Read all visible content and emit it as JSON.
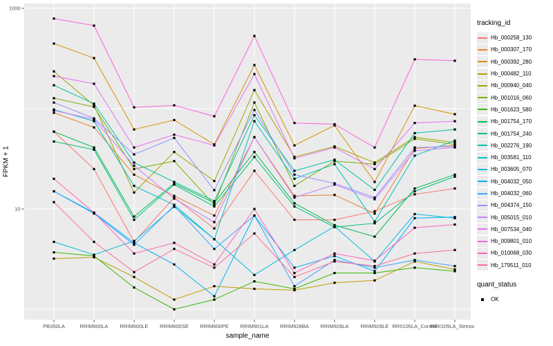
{
  "figure": {
    "panel_background": "#ebebeb",
    "gridline_color": "#ffffff",
    "tick_label_color": "#4d4d4d",
    "tick_mark_color": "#333333",
    "marker_color": "#000000"
  },
  "chart_data": {
    "type": "line",
    "title": "",
    "xlabel": "sample_name",
    "ylabel": "FPKM + 1",
    "y_scale": "log10",
    "ylim": [
      0.85,
      1150
    ],
    "y_tick_labels": [
      "1000",
      "10"
    ],
    "y_tick_values": [
      1000,
      10
    ],
    "y_gridline_values": [
      1000,
      100,
      10,
      1
    ],
    "grid": "on",
    "legend_position": "right",
    "categories": [
      "PB350LA",
      "RRIM600LA",
      "RRIM600LE",
      "RRIM600SE",
      "RRIM600PE",
      "RRIM901LA",
      "RRIM928BA",
      "RRIM928LA",
      "RRIM928LE",
      "RRII105LA_Control",
      "RRII105LA_Stressed"
    ],
    "legend": {
      "color_title": "tracking_id",
      "shape_title": "quant_status",
      "shape_items": [
        {
          "label": "OK",
          "marker": "black-square"
        }
      ]
    },
    "series": [
      {
        "name": "Hb_000258_130",
        "color": "#F8766D",
        "values": [
          59,
          25,
          4.7,
          13,
          6.4,
          24,
          7.8,
          7.8,
          9.5,
          14,
          16
        ]
      },
      {
        "name": "Hb_000307_170",
        "color": "#EA8331",
        "values": [
          91,
          65,
          22,
          13.5,
          8.6,
          52,
          13.5,
          13.8,
          9.0,
          40,
          43
        ]
      },
      {
        "name": "Hb_000392_280",
        "color": "#D89000",
        "values": [
          445,
          319,
          62,
          77,
          44,
          272,
          43,
          68,
          18.6,
          107,
          88
        ]
      },
      {
        "name": "Hb_000482_110",
        "color": "#C09B00",
        "values": [
          3.2,
          3.3,
          2.1,
          1.25,
          1.7,
          1.6,
          1.55,
          1.84,
          1.94,
          3.0,
          2.5
        ]
      },
      {
        "name": "Hb_000940_040",
        "color": "#A3A500",
        "values": [
          235,
          108,
          14.6,
          37,
          19,
          153,
          33,
          42,
          29,
          52,
          46
        ]
      },
      {
        "name": "Hb_001016_060",
        "color": "#7CAE00",
        "values": [
          127,
          104,
          25,
          30,
          11,
          115,
          17,
          30,
          28,
          50,
          44
        ]
      },
      {
        "name": "Hb_001623_580",
        "color": "#39B600",
        "values": [
          3.7,
          3.4,
          1.65,
          1.0,
          1.25,
          1.9,
          1.6,
          2.3,
          2.3,
          2.6,
          2.4
        ]
      },
      {
        "name": "Hb_001754_170",
        "color": "#00BB4E",
        "values": [
          59,
          41,
          8.4,
          18,
          11.5,
          37,
          11.4,
          6.9,
          5.3,
          16,
          22
        ]
      },
      {
        "name": "Hb_001754_240",
        "color": "#00BF7D",
        "values": [
          47,
          39,
          7.8,
          17.5,
          10.6,
          33,
          10.6,
          6.6,
          7.2,
          15,
          21
        ]
      },
      {
        "name": "Hb_002276_190",
        "color": "#00C1A7",
        "values": [
          171,
          112,
          29,
          18.6,
          12,
          86,
          24,
          31,
          15.5,
          57,
          62
        ]
      },
      {
        "name": "Hb_003581_110",
        "color": "#00BFC4",
        "values": [
          98,
          75,
          17,
          11,
          5.0,
          75,
          20,
          28,
          7.5,
          34,
          48
        ]
      },
      {
        "name": "Hb_003605_070",
        "color": "#00BAE0",
        "values": [
          4.7,
          3.5,
          4.8,
          10.5,
          5.0,
          2.2,
          3.9,
          6.7,
          3.0,
          8.9,
          8.1
        ]
      },
      {
        "name": "Hb_004032_050",
        "color": "#00B0F6",
        "values": [
          15,
          9.2,
          4.6,
          2.8,
          1.35,
          8.6,
          2.6,
          3.4,
          2.4,
          8.1,
          8.3
        ]
      },
      {
        "name": "Hb_004032_060",
        "color": "#35A2FF",
        "values": [
          15,
          9.0,
          4.4,
          10.8,
          4.0,
          8.6,
          1.7,
          3.1,
          2.6,
          3.1,
          2.7
        ]
      },
      {
        "name": "Hb_004374_150",
        "color": "#9590FF",
        "values": [
          115,
          80,
          35,
          51,
          15.4,
          97,
          22,
          18,
          13,
          41,
          42
        ]
      },
      {
        "name": "Hb_005015_010",
        "color": "#C77CFF",
        "values": [
          96,
          78,
          27,
          12.7,
          7.4,
          52,
          13,
          17.5,
          12.5,
          38,
          41
        ]
      },
      {
        "name": "Hb_007534_040",
        "color": "#E76BF3",
        "values": [
          211,
          177,
          41,
          55,
          43,
          221,
          32,
          41,
          25,
          72,
          75
        ]
      },
      {
        "name": "Hb_009801_010",
        "color": "#FA62DB",
        "values": [
          790,
          672,
          103,
          108,
          84,
          530,
          72,
          70,
          41,
          310,
          300
        ]
      },
      {
        "name": "Hb_010068_030",
        "color": "#FF62BC",
        "values": [
          20,
          9.2,
          3.6,
          4.6,
          2.8,
          10,
          2.3,
          3.6,
          3.05,
          6.5,
          7.0
        ]
      },
      {
        "name": "Hb_179511_010",
        "color": "#FF6A98",
        "values": [
          11.7,
          4.7,
          2.35,
          4.0,
          2.6,
          5.7,
          2.1,
          3.0,
          2.7,
          3.6,
          3.9
        ]
      }
    ]
  }
}
